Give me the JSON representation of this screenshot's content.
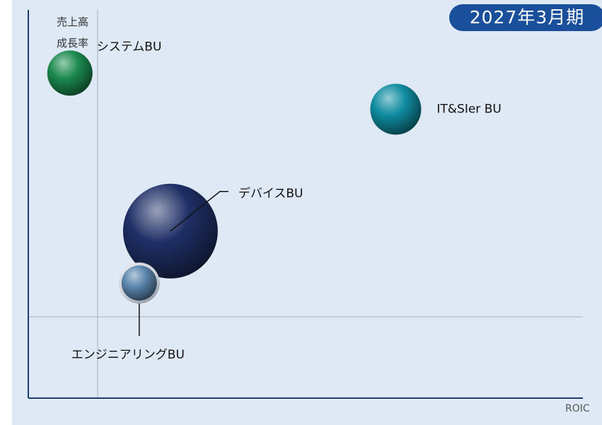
{
  "period_badge": "2027年3月期",
  "colors": {
    "background": "#dfe8f5",
    "badge": "#1a4f9c",
    "axis": "#1f3a6e",
    "reference_line": "#b9c3cf"
  },
  "chart_data": {
    "type": "scatter",
    "title": "",
    "ylabel_lines": [
      "売上高",
      "成長率"
    ],
    "xlabel": "ROIC",
    "grid": false,
    "axis_ticks": "none",
    "reference_lines": {
      "x": 0,
      "y": 0
    },
    "xlim": [
      -2,
      14
    ],
    "ylim": [
      -1.8,
      6.8
    ],
    "size_unit": "relative bubble radius",
    "points": [
      {
        "name": "システムBU",
        "x": -0.8,
        "y": 5.4,
        "size": 32,
        "color": "#1b8a4f"
      },
      {
        "name": "IT&SIer BU",
        "x": 8.6,
        "y": 4.6,
        "size": 36,
        "color": "#0f8ca0"
      },
      {
        "name": "デバイスBU",
        "x": 2.1,
        "y": 1.9,
        "size": 67,
        "color": "#1f2f66"
      },
      {
        "name": "エンジニアリングBU",
        "x": 1.2,
        "y": 0.75,
        "size": 25,
        "color": "#5b86ad"
      }
    ]
  }
}
